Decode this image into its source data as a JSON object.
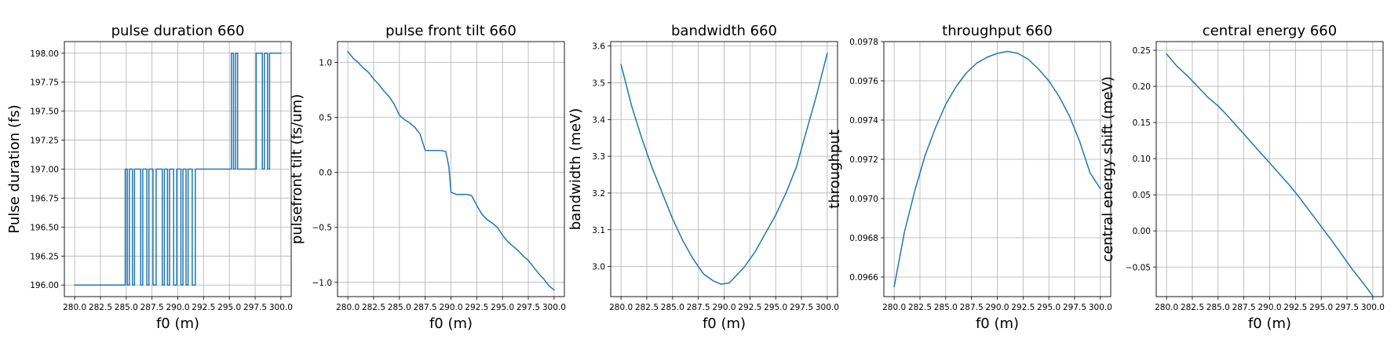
{
  "chart_data": [
    {
      "type": "line",
      "title": "pulse duration 660",
      "xlabel": "f0 (m)",
      "ylabel": "Pulse duration (fs)",
      "xlim": [
        279.0,
        301.0
      ],
      "ylim": [
        195.9,
        198.1
      ],
      "xticks": [
        280.0,
        282.5,
        285.0,
        287.5,
        290.0,
        292.5,
        295.0,
        297.5,
        300.0
      ],
      "xtick_labels": [
        "280.0",
        "282.5",
        "285.0",
        "287.5",
        "290.0",
        "292.5",
        "295.0",
        "297.5",
        "300.0"
      ],
      "yticks": [
        196.0,
        196.25,
        196.5,
        196.75,
        197.0,
        197.25,
        197.5,
        197.75,
        198.0
      ],
      "ytick_labels": [
        "196.00",
        "196.25",
        "196.50",
        "196.75",
        "197.00",
        "197.25",
        "197.50",
        "197.75",
        "198.00"
      ],
      "grid": true,
      "color": "#1f77b4",
      "series": [
        {
          "x": [
            280.0,
            284.9,
            284.9,
            285.1,
            285.1,
            285.3,
            285.3,
            285.6,
            285.6,
            285.8,
            285.8,
            286.4,
            286.4,
            286.6,
            286.6,
            287.0,
            287.0,
            287.2,
            287.2,
            287.6,
            287.6,
            287.9,
            287.9,
            288.5,
            288.5,
            288.7,
            288.7,
            289.0,
            289.0,
            289.2,
            289.2,
            289.6,
            289.6,
            289.9,
            289.9,
            290.3,
            290.3,
            290.5,
            290.5,
            290.8,
            290.8,
            291.0,
            291.0,
            291.4,
            291.4,
            291.7,
            291.7,
            291.7,
            291.7,
            295.2,
            295.2,
            295.4,
            295.4,
            295.6,
            295.6,
            295.8,
            295.8,
            297.6,
            297.6,
            298.2,
            298.2,
            298.4,
            298.4,
            298.7,
            298.7,
            298.9,
            298.9,
            299.1,
            299.1,
            300.0
          ],
          "y": [
            196.0,
            196.0,
            197.0,
            197.0,
            196.0,
            196.0,
            197.0,
            197.0,
            196.0,
            196.0,
            197.0,
            197.0,
            196.0,
            196.0,
            197.0,
            197.0,
            196.0,
            196.0,
            197.0,
            197.0,
            196.0,
            196.0,
            197.0,
            197.0,
            196.0,
            196.0,
            197.0,
            197.0,
            196.0,
            196.0,
            197.0,
            197.0,
            196.0,
            196.0,
            197.0,
            197.0,
            196.0,
            196.0,
            197.0,
            197.0,
            196.0,
            196.0,
            197.0,
            197.0,
            196.0,
            196.0,
            197.0,
            197.0,
            197.0,
            197.0,
            198.0,
            198.0,
            197.0,
            197.0,
            198.0,
            198.0,
            197.0,
            197.0,
            198.0,
            198.0,
            197.0,
            197.0,
            198.0,
            198.0,
            197.0,
            197.0,
            198.0,
            198.0,
            198.0,
            198.0
          ]
        }
      ]
    },
    {
      "type": "line",
      "title": "pulse front tilt 660",
      "xlabel": "f0 (m)",
      "ylabel": "pulsefront tilt (fs/um)",
      "xlim": [
        279.0,
        301.0
      ],
      "ylim": [
        -1.13,
        1.19
      ],
      "xticks": [
        280.0,
        282.5,
        285.0,
        287.5,
        290.0,
        292.5,
        295.0,
        297.5,
        300.0
      ],
      "xtick_labels": [
        "280.0",
        "282.5",
        "285.0",
        "287.5",
        "290.0",
        "292.5",
        "295.0",
        "297.5",
        "300.0"
      ],
      "yticks": [
        -1.0,
        -0.5,
        0.0,
        0.5,
        1.0
      ],
      "ytick_labels": [
        "−1.0",
        "−0.5",
        "0.0",
        "0.5",
        "1.0"
      ],
      "grid": true,
      "color": "#1f77b4",
      "series": [
        {
          "x": [
            280.0,
            280.5,
            281.0,
            281.5,
            282.0,
            282.5,
            283.0,
            283.5,
            284.0,
            284.5,
            285.0,
            285.5,
            286.0,
            286.5,
            287.0,
            287.5,
            288.0,
            288.5,
            289.0,
            289.5,
            289.8,
            290.0,
            290.5,
            291.0,
            291.5,
            292.0,
            292.5,
            293.0,
            293.5,
            294.0,
            294.5,
            295.0,
            295.5,
            296.0,
            296.5,
            297.0,
            297.5,
            298.0,
            298.5,
            299.0,
            299.5,
            300.0
          ],
          "y": [
            1.1,
            1.04,
            1.0,
            0.95,
            0.91,
            0.85,
            0.8,
            0.74,
            0.69,
            0.62,
            0.52,
            0.48,
            0.45,
            0.41,
            0.35,
            0.2,
            0.2,
            0.2,
            0.2,
            0.19,
            0.05,
            -0.18,
            -0.2,
            -0.2,
            -0.2,
            -0.21,
            -0.3,
            -0.38,
            -0.43,
            -0.46,
            -0.5,
            -0.57,
            -0.63,
            -0.67,
            -0.71,
            -0.76,
            -0.8,
            -0.86,
            -0.92,
            -0.97,
            -1.03,
            -1.07
          ]
        }
      ]
    },
    {
      "type": "line",
      "title": "bandwidth 660",
      "xlabel": "f0 (m)",
      "ylabel": "bandwidth (meV)",
      "xlim": [
        279.0,
        301.0
      ],
      "ylim": [
        2.918,
        3.612
      ],
      "xticks": [
        280.0,
        282.5,
        285.0,
        287.5,
        290.0,
        292.5,
        295.0,
        297.5,
        300.0
      ],
      "xtick_labels": [
        "280.0",
        "282.5",
        "285.0",
        "287.5",
        "290.0",
        "292.5",
        "295.0",
        "297.5",
        "300.0"
      ],
      "yticks": [
        3.0,
        3.1,
        3.2,
        3.3,
        3.4,
        3.5,
        3.6
      ],
      "ytick_labels": [
        "3.0",
        "3.1",
        "3.2",
        "3.3",
        "3.4",
        "3.5",
        "3.6"
      ],
      "grid": true,
      "color": "#1f77b4",
      "series": [
        {
          "x": [
            280.0,
            281.0,
            282.0,
            283.0,
            284.0,
            285.0,
            286.0,
            287.0,
            288.0,
            289.0,
            289.7,
            290.5,
            291.0,
            292.0,
            293.0,
            294.0,
            295.0,
            296.0,
            297.0,
            298.0,
            299.0,
            300.0
          ],
          "y": [
            3.55,
            3.44,
            3.35,
            3.27,
            3.2,
            3.13,
            3.07,
            3.02,
            2.98,
            2.96,
            2.952,
            2.955,
            2.97,
            3.0,
            3.04,
            3.09,
            3.14,
            3.2,
            3.27,
            3.37,
            3.47,
            3.58
          ]
        }
      ]
    },
    {
      "type": "line",
      "title": "throughput 660",
      "xlabel": "f0 (m)",
      "ylabel": "throughput",
      "xlim": [
        279.0,
        301.0
      ],
      "ylim": [
        0.0965,
        0.0978
      ],
      "xticks": [
        280.0,
        282.5,
        285.0,
        287.5,
        290.0,
        292.5,
        295.0,
        297.5,
        300.0
      ],
      "xtick_labels": [
        "280.0",
        "282.5",
        "285.0",
        "287.5",
        "290.0",
        "292.5",
        "295.0",
        "297.5",
        "300.0"
      ],
      "yticks": [
        0.0966,
        0.0968,
        0.097,
        0.0972,
        0.0974,
        0.0976,
        0.0978
      ],
      "ytick_labels": [
        "0.0966",
        "0.0968",
        "0.0970",
        "0.0972",
        "0.0974",
        "0.0976",
        "0.0978"
      ],
      "grid": true,
      "color": "#1f77b4",
      "series": [
        {
          "x": [
            280.0,
            281.0,
            282.0,
            283.0,
            284.0,
            285.0,
            286.0,
            287.0,
            288.0,
            289.0,
            290.0,
            291.0,
            292.0,
            293.0,
            294.0,
            295.0,
            296.0,
            297.0,
            298.0,
            299.0,
            300.0
          ],
          "y": [
            0.09655,
            0.09683,
            0.09704,
            0.09722,
            0.09736,
            0.09748,
            0.09757,
            0.09764,
            0.09769,
            0.09772,
            0.09774,
            0.09775,
            0.09774,
            0.09771,
            0.09766,
            0.0976,
            0.09752,
            0.09742,
            0.09729,
            0.09713,
            0.09705
          ]
        }
      ]
    },
    {
      "type": "line",
      "title": "central energy 660",
      "xlabel": "f0 (m)",
      "ylabel": "central energy shift (meV)",
      "xlim": [
        279.0,
        301.0
      ],
      "ylim": [
        -0.091,
        0.262
      ],
      "xticks": [
        280.0,
        282.5,
        285.0,
        287.5,
        290.0,
        292.5,
        295.0,
        297.5,
        300.0
      ],
      "xtick_labels": [
        "280.0",
        "282.5",
        "285.0",
        "287.5",
        "290.0",
        "292.5",
        "295.0",
        "297.5",
        "300.0"
      ],
      "yticks": [
        -0.05,
        0.0,
        0.05,
        0.1,
        0.15,
        0.2,
        0.25
      ],
      "ytick_labels": [
        "−0.05",
        "0.00",
        "0.05",
        "0.10",
        "0.15",
        "0.20",
        "0.25"
      ],
      "grid": true,
      "color": "#1f77b4",
      "series": [
        {
          "x": [
            280.0,
            281.0,
            282.0,
            283.0,
            284.0,
            285.0,
            286.0,
            287.0,
            288.0,
            289.0,
            290.0,
            291.0,
            292.0,
            293.0,
            294.0,
            295.0,
            296.0,
            297.0,
            298.0,
            299.0,
            300.0
          ],
          "y": [
            0.245,
            0.228,
            0.215,
            0.2,
            0.185,
            0.173,
            0.158,
            0.142,
            0.126,
            0.11,
            0.094,
            0.078,
            0.062,
            0.044,
            0.025,
            0.006,
            -0.013,
            -0.033,
            -0.053,
            -0.071,
            -0.09
          ]
        }
      ]
    }
  ]
}
